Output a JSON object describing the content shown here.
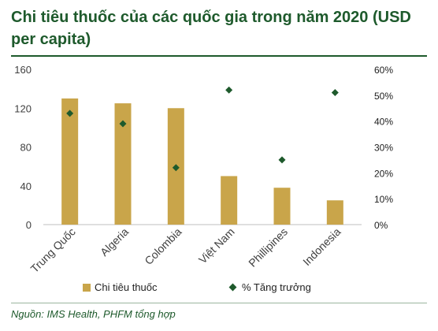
{
  "title": "Chi tiêu thuốc của các quốc gia trong năm 2020 (USD per capita)",
  "source": "Nguồn: IMS Health, PHFM tổng hợp",
  "colors": {
    "bar": "#c9a54a",
    "marker": "#1e5a2c",
    "title": "#1e5a2c"
  },
  "chart_data": {
    "type": "bar",
    "categories": [
      "Trung Quốc",
      "Algeria",
      "Colombia",
      "Việt Nam",
      "Phillipines",
      "Indonesia"
    ],
    "series": [
      {
        "name": "Chi tiêu thuốc",
        "type": "bar",
        "axis": "left",
        "values": [
          130,
          125,
          120,
          50,
          38,
          25
        ]
      },
      {
        "name": "% Tăng trưởng",
        "type": "scatter",
        "axis": "right",
        "values": [
          43,
          39,
          22,
          52,
          25,
          51
        ]
      }
    ],
    "y_left": {
      "min": 0,
      "max": 160,
      "ticks": [
        "0",
        "40",
        "80",
        "120",
        "160"
      ]
    },
    "y_right": {
      "min": 0,
      "max": 60,
      "ticks": [
        "0%",
        "10%",
        "20%",
        "30%",
        "40%",
        "50%",
        "60%"
      ]
    },
    "grid": false,
    "legend": "bottom"
  }
}
